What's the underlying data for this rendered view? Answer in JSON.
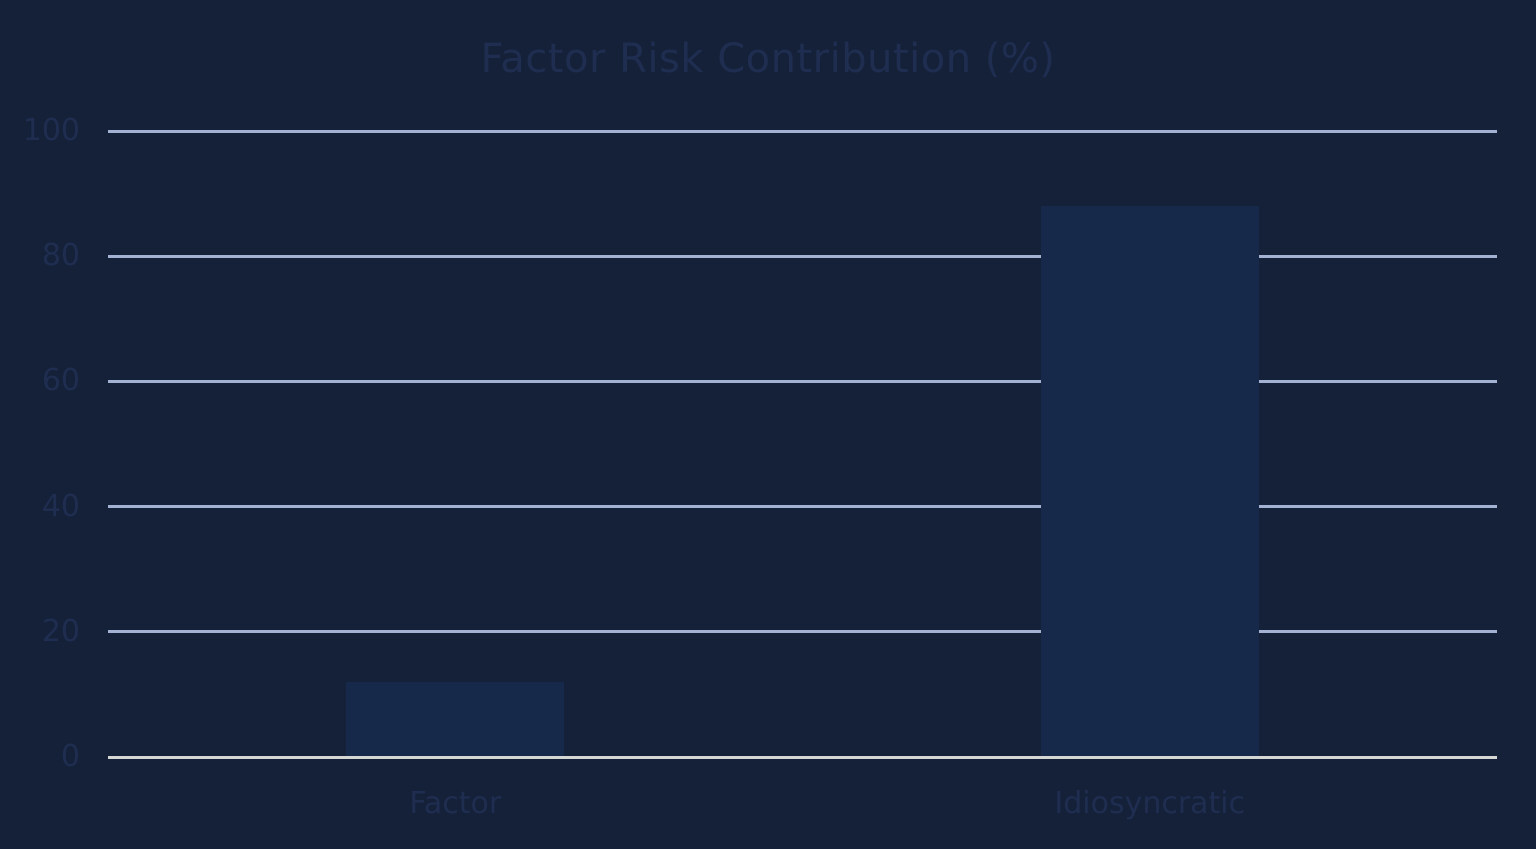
{
  "chart_data": {
    "type": "bar",
    "title": "Factor Risk Contribution (%)",
    "categories": [
      "Factor",
      "Idiosyncratic"
    ],
    "values": [
      12,
      88
    ],
    "xlabel": "",
    "ylabel": "",
    "ylim": [
      0,
      100
    ],
    "yticks": [
      0,
      20,
      40,
      60,
      80,
      100
    ],
    "grid": true,
    "legend": false
  },
  "colors": {
    "background": "#152139",
    "bar_fill": "#17294B",
    "text": "#1F2D50",
    "gridline": "#A3B2D2",
    "axis_line": "#D4D7D4"
  }
}
